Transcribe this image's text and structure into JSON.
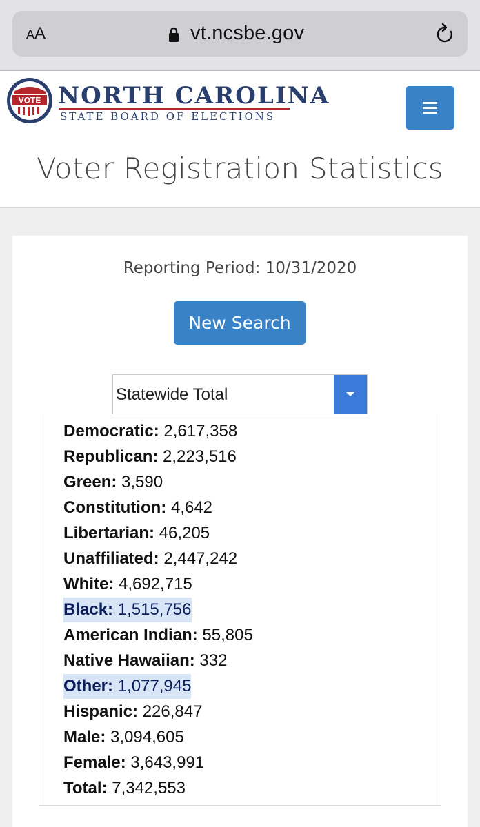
{
  "browser": {
    "aa_label": "AA",
    "url": "vt.ncsbe.gov"
  },
  "header": {
    "logo_badge_text": "VOTE",
    "logo_title": "NORTH CAROLINA",
    "logo_subtitle": "STATE BOARD OF ELECTIONS",
    "page_title": "Voter Registration Statistics"
  },
  "main": {
    "reporting_period": "Reporting Period: 10/31/2020",
    "new_search_label": "New Search",
    "scope_select_value": "Statewide Total",
    "stats": [
      {
        "label": "Democratic:",
        "value": "2,617,358",
        "highlighted": false
      },
      {
        "label": "Republican:",
        "value": "2,223,516",
        "highlighted": false
      },
      {
        "label": "Green:",
        "value": "3,590",
        "highlighted": false
      },
      {
        "label": "Constitution:",
        "value": "4,642",
        "highlighted": false
      },
      {
        "label": "Libertarian:",
        "value": "46,205",
        "highlighted": false
      },
      {
        "label": "Unaffiliated:",
        "value": "2,447,242",
        "highlighted": false
      },
      {
        "label": "White:",
        "value": "4,692,715",
        "highlighted": false
      },
      {
        "label": "Black:",
        "value": "1,515,756",
        "highlighted": true
      },
      {
        "label": "American Indian:",
        "value": "55,805",
        "highlighted": false
      },
      {
        "label": "Native Hawaiian:",
        "value": "332",
        "highlighted": false
      },
      {
        "label": "Other:",
        "value": "1,077,945",
        "highlighted": true
      },
      {
        "label": "Hispanic:",
        "value": "226,847",
        "highlighted": false
      },
      {
        "label": "Male:",
        "value": "3,094,605",
        "highlighted": false
      },
      {
        "label": "Female:",
        "value": "3,643,991",
        "highlighted": false
      },
      {
        "label": "Total:",
        "value": "7,342,553",
        "highlighted": false
      }
    ]
  },
  "colors": {
    "primary_button": "#3a82c6",
    "brand_navy": "#2a3f6e",
    "brand_red": "#b5252c",
    "highlight": "#d8e5f7"
  }
}
